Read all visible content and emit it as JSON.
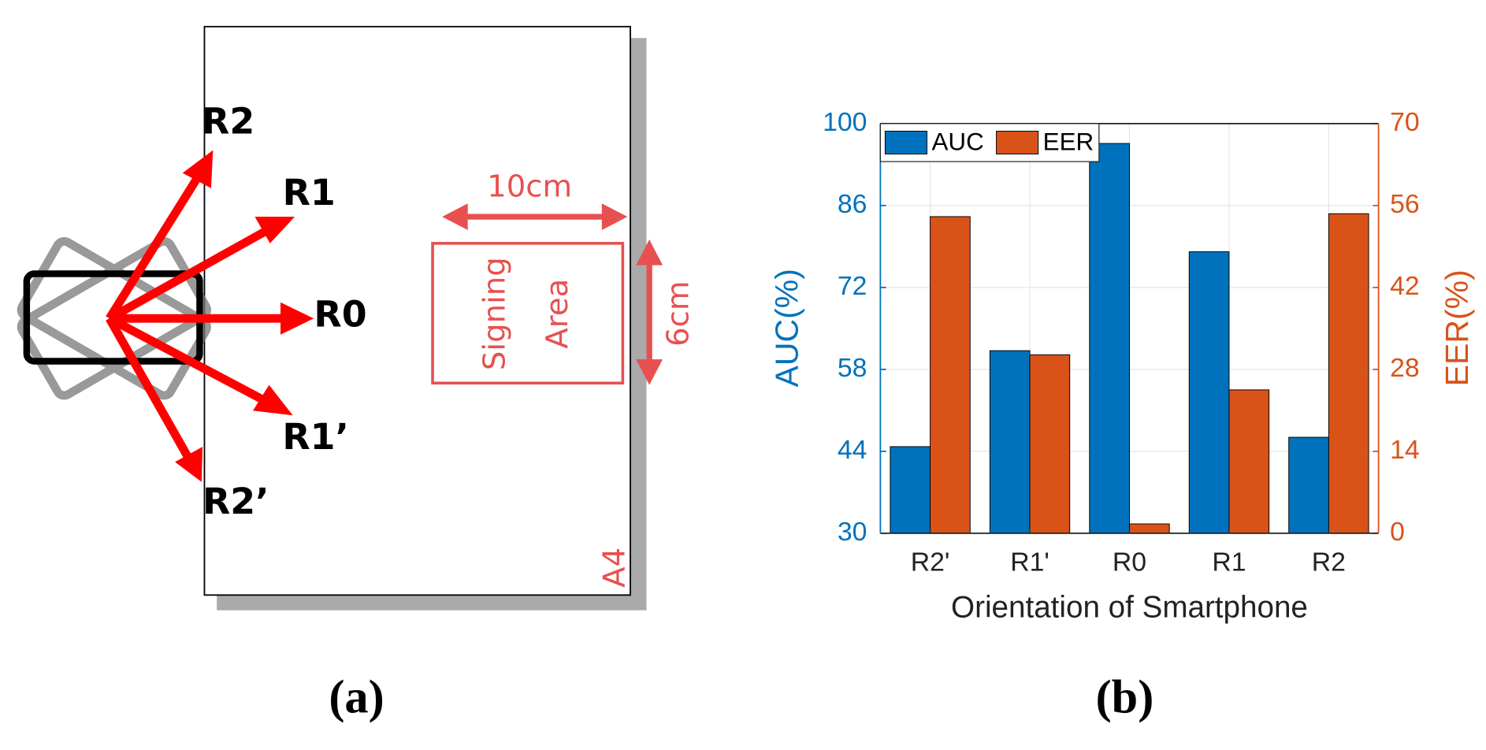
{
  "diagram": {
    "labels": [
      "R2",
      "R1",
      "R0",
      "R1’",
      "R2’"
    ],
    "width_label": "10cm",
    "height_label": "6cm",
    "area_label": [
      "Signing",
      "Area"
    ],
    "paper_label": "A4",
    "caption": "(a)"
  },
  "chart_data": {
    "type": "bar",
    "caption": "(b)",
    "x_label": "Orientation of Smartphone",
    "y_label": "AUC(%)",
    "y2_label": "EER(%)",
    "categories": [
      "R2'",
      "R1'",
      "R0",
      "R1",
      "R2"
    ],
    "series": [
      {
        "name": "AUC",
        "color": "#0072bd",
        "values": [
          44.8,
          61.2,
          96.6,
          78.1,
          46.4
        ]
      },
      {
        "name": "EER",
        "color": "#d95319",
        "axis": "y2",
        "values": [
          54.1,
          30.5,
          1.6,
          24.5,
          54.6
        ]
      }
    ],
    "ylim": [
      30,
      100
    ],
    "yticks": [
      30,
      44,
      58,
      72,
      86,
      100
    ],
    "y2lim": [
      0,
      70
    ],
    "y2ticks": [
      0,
      14,
      28,
      42,
      56,
      70
    ],
    "grid": true,
    "legend": "top-left"
  }
}
